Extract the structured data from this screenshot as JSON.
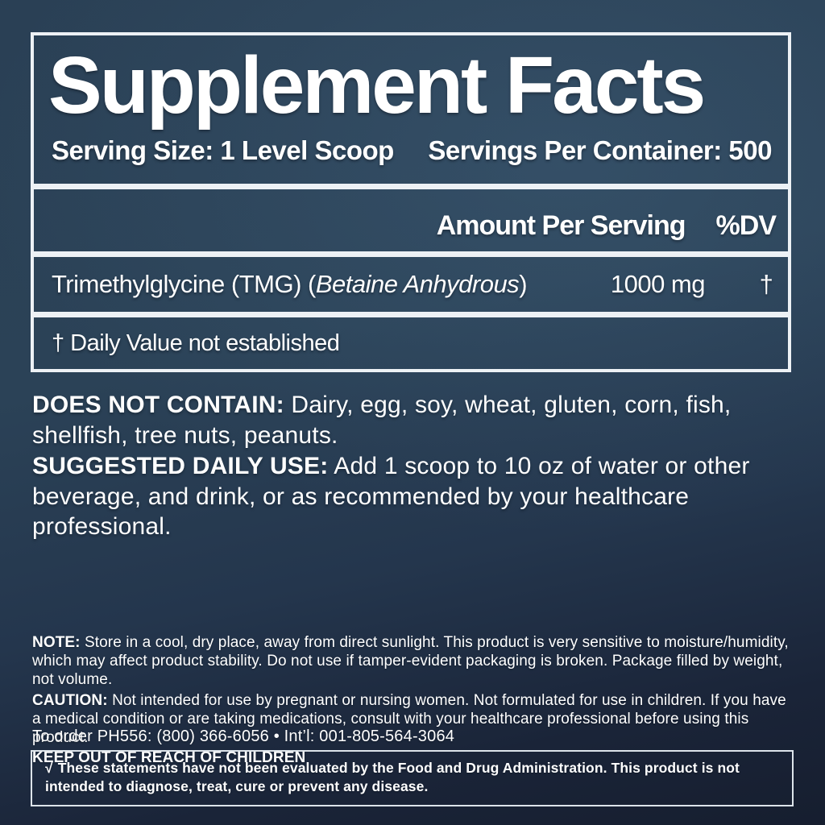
{
  "colors": {
    "background_top": "#2b4257",
    "background_bottom": "#161e2f",
    "panel_border": "#edf1f5",
    "text": "#ffffff"
  },
  "panel": {
    "title": "Supplement Facts",
    "serving_size_label": "Serving Size: 1 Level Scoop",
    "servings_per_container_label": "Servings Per Container: 500",
    "columns": {
      "amount": "Amount Per Serving",
      "dv": "%DV"
    },
    "rows": [
      {
        "name_prefix": "Trimethylglycine (TMG) (",
        "name_italic": "Betaine Anhydrous",
        "name_suffix": ")",
        "amount": "1000 mg",
        "dv_symbol": "†"
      }
    ],
    "footnote": "† Daily Value not established"
  },
  "body": {
    "does_not_contain": {
      "label": "DOES NOT CONTAIN:",
      "text": " Dairy, egg, soy, wheat, gluten, corn, fish, shellfish, tree nuts, peanuts."
    },
    "suggested_daily_use": {
      "label": "SUGGESTED DAILY USE:",
      "text": " Add 1 scoop to 10 oz of water or other beverage, and drink, or as recommended by your healthcare professional."
    },
    "note": {
      "label": "NOTE:",
      "text": " Store in a cool, dry place, away from direct sunlight. This product is very sensitive to moisture/humidity, which may affect product stability. Do not use if tamper-evident packaging is broken. Package filled by weight, not volume."
    },
    "caution": {
      "label": "CAUTION:",
      "text": " Not intended for use by pregnant or nursing women. Not formulated for use in children. If you have a medical condition or are taking medications, consult with your healthcare professional before using this product."
    },
    "keep_out": "KEEP OUT OF REACH OF CHILDREN",
    "order_line": "To order PH556: (800) 366-6056 • Int’l: 001-805-564-3064",
    "disclaimer": {
      "mark": "√",
      "text": "These statements have not been evaluated by the Food and Drug Administration. This product is not intended to diagnose, treat, cure or prevent any disease."
    }
  }
}
